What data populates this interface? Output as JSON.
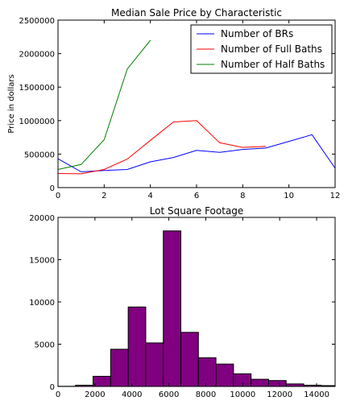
{
  "chart_data": [
    {
      "type": "line",
      "title": "Median Sale Price by Characteristic",
      "xlabel": "",
      "ylabel": "Price in dollars",
      "xlim": [
        0,
        12
      ],
      "ylim": [
        0,
        2500000
      ],
      "xticks": [
        "0",
        "2",
        "4",
        "6",
        "8",
        "10",
        "12"
      ],
      "yticks": [
        "0",
        "500000",
        "1000000",
        "1500000",
        "2000000",
        "2500000"
      ],
      "legend_position": "top-right",
      "series": [
        {
          "name": "Number of BRs",
          "color": "#0000ff",
          "x": [
            0,
            1,
            2,
            3,
            4,
            5,
            6,
            7,
            8,
            9,
            10,
            11,
            12
          ],
          "y": [
            430000,
            235000,
            255000,
            270000,
            385000,
            450000,
            555000,
            525000,
            570000,
            590000,
            690000,
            790000,
            290000
          ]
        },
        {
          "name": "Number of Full Baths",
          "color": "#ff0000",
          "x": [
            0,
            1,
            2,
            3,
            4,
            5,
            6,
            7,
            8,
            9
          ],
          "y": [
            210000,
            205000,
            270000,
            425000,
            705000,
            980000,
            1000000,
            670000,
            600000,
            615000
          ]
        },
        {
          "name": "Number of Half Baths",
          "color": "#008000",
          "x": [
            0,
            1,
            2,
            3,
            4
          ],
          "y": [
            270000,
            345000,
            715000,
            1770000,
            2200000
          ]
        }
      ]
    },
    {
      "type": "bar",
      "title": "Lot Square Footage",
      "xlabel": "",
      "ylabel": "",
      "xlim": [
        0,
        15000
      ],
      "ylim": [
        0,
        20000
      ],
      "xticks": [
        "0",
        "2000",
        "4000",
        "6000",
        "8000",
        "10000",
        "12000",
        "14000"
      ],
      "yticks": [
        "0",
        "5000",
        "10000",
        "15000",
        "20000"
      ],
      "bar_color": "#800080",
      "bin_edges": [
        0,
        950,
        1900,
        2850,
        3800,
        4750,
        5700,
        6650,
        7600,
        8550,
        9500,
        10450,
        11400,
        12350,
        13300,
        14250,
        15000
      ],
      "values": [
        20,
        150,
        1200,
        4400,
        9400,
        5150,
        18400,
        6400,
        3400,
        2650,
        1500,
        850,
        700,
        300,
        150,
        100
      ]
    }
  ]
}
